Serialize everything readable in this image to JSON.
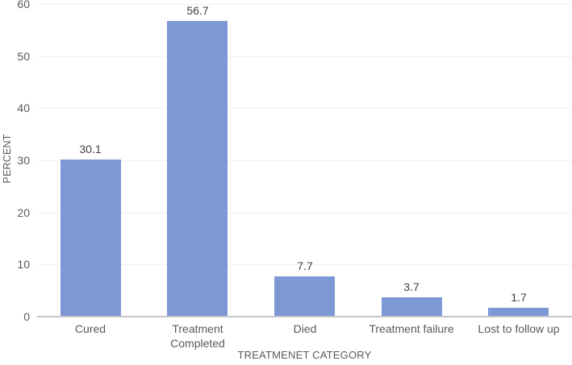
{
  "chart_data": {
    "type": "bar",
    "categories": [
      "Cured",
      "Treatment Completed",
      "Died",
      "Treatment failure",
      "Lost to follow up"
    ],
    "values": [
      30.1,
      56.7,
      7.7,
      3.7,
      1.7
    ],
    "data_labels": [
      "30.1",
      "56.7",
      "7.7",
      "3.7",
      "1.7"
    ],
    "title": "",
    "xlabel": "TREATMENET CATEGORY",
    "ylabel": "PERCENT",
    "ylim": [
      0,
      60
    ],
    "yticks": [
      0,
      10,
      20,
      30,
      40,
      50,
      60
    ],
    "grid": true,
    "legend": false,
    "colors": {
      "bar": "#7c98d5",
      "gridline": "#f0f0f0",
      "axis_line": "#c6c6c6",
      "tick_text": "#595959",
      "data_label_text": "#3f3f3f"
    }
  }
}
